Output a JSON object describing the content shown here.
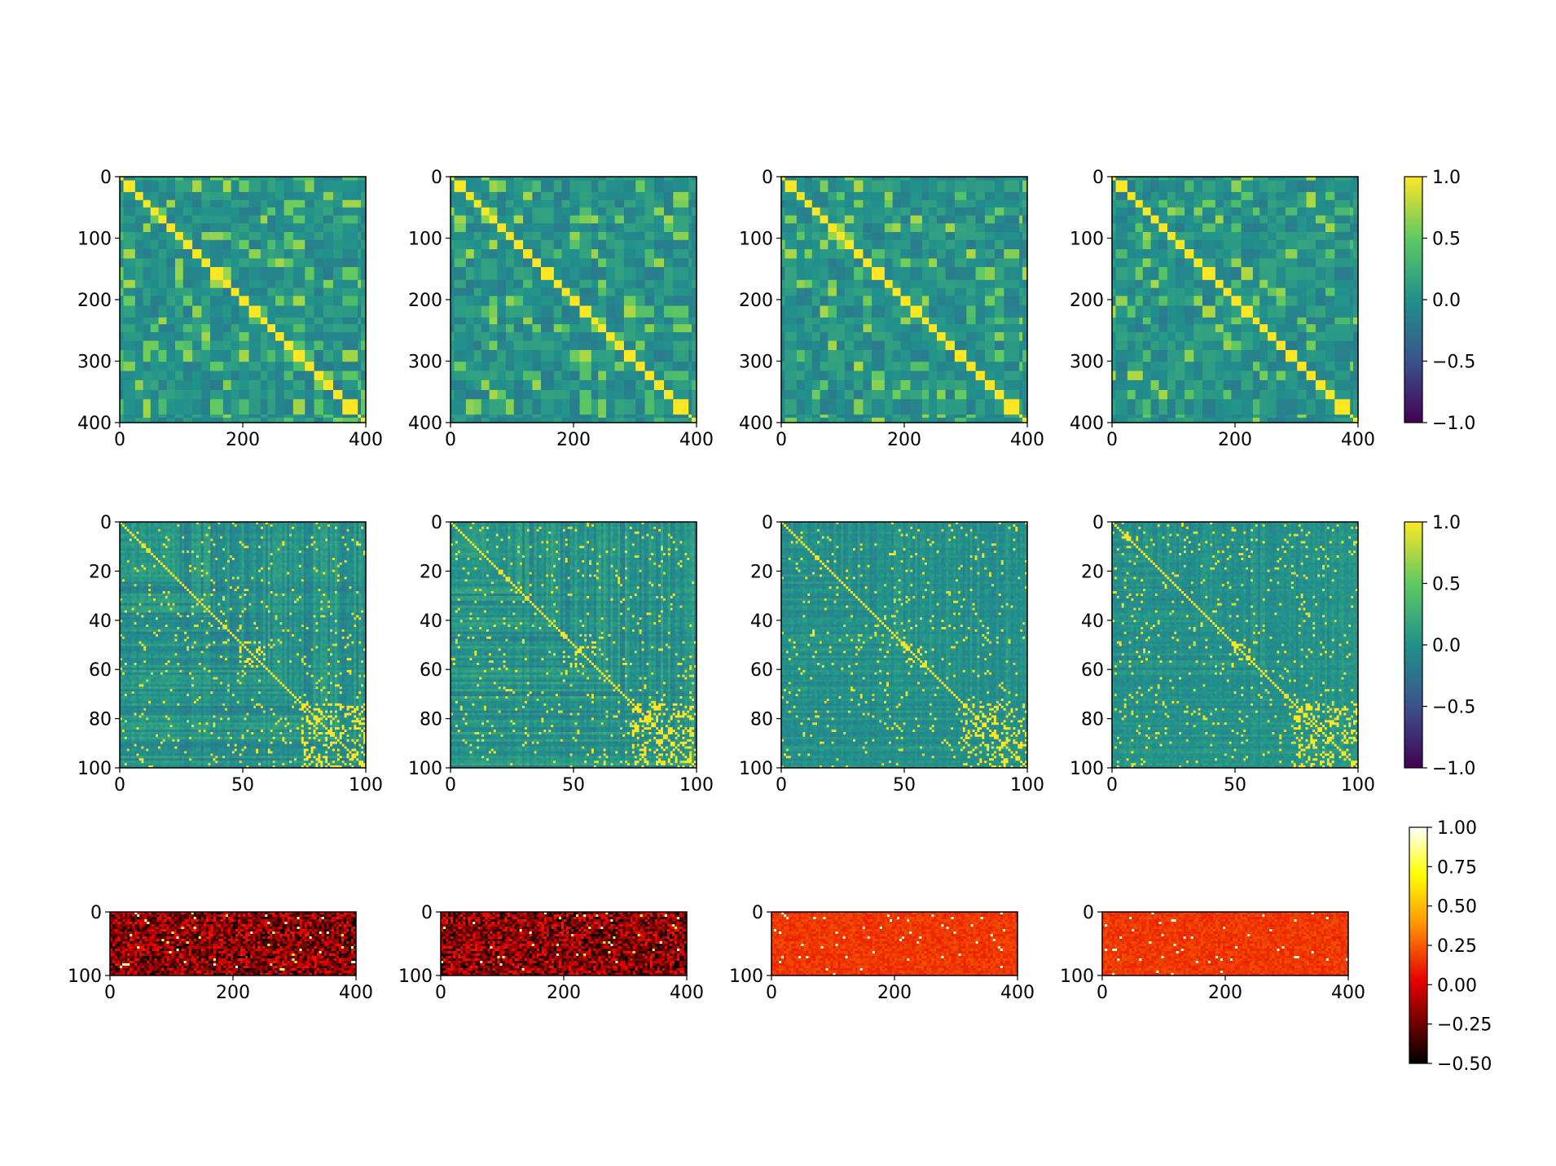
{
  "figure": {
    "panels": "12 heatmap panels in 3 rows x 4 columns with one shared colorbar per row"
  },
  "chart_data": [
    {
      "type": "heatmap",
      "row": 1,
      "col": 1,
      "variant": "blocks-a",
      "n": 400,
      "xlim": [
        0,
        400
      ],
      "ylim": [
        400,
        0
      ],
      "xticks": [
        "0",
        "200",
        "400"
      ],
      "yticks": [
        "0",
        "100",
        "200",
        "300",
        "400"
      ],
      "colormap": "viridis",
      "clim": [
        -1.0,
        1.0
      ]
    },
    {
      "type": "heatmap",
      "row": 1,
      "col": 2,
      "variant": "blocks-b",
      "n": 400,
      "xlim": [
        0,
        400
      ],
      "ylim": [
        400,
        0
      ],
      "xticks": [
        "0",
        "200",
        "400"
      ],
      "yticks": [
        "0",
        "100",
        "200",
        "300",
        "400"
      ],
      "colormap": "viridis",
      "clim": [
        -1.0,
        1.0
      ]
    },
    {
      "type": "heatmap",
      "row": 1,
      "col": 3,
      "variant": "blocks-c",
      "n": 400,
      "xlim": [
        0,
        400
      ],
      "ylim": [
        400,
        0
      ],
      "xticks": [
        "0",
        "200",
        "400"
      ],
      "yticks": [
        "0",
        "100",
        "200",
        "300",
        "400"
      ],
      "colormap": "viridis",
      "clim": [
        -1.0,
        1.0
      ]
    },
    {
      "type": "heatmap",
      "row": 1,
      "col": 4,
      "variant": "blocks-d",
      "n": 400,
      "xlim": [
        0,
        400
      ],
      "ylim": [
        400,
        0
      ],
      "xticks": [
        "0",
        "200",
        "400"
      ],
      "yticks": [
        "0",
        "100",
        "200",
        "300",
        "400"
      ],
      "colormap": "viridis",
      "clim": [
        -1.0,
        1.0
      ]
    },
    {
      "type": "heatmap",
      "row": 2,
      "col": 1,
      "variant": "sparse-a",
      "n": 103,
      "xlim": [
        0,
        100
      ],
      "ylim": [
        100,
        0
      ],
      "xticks": [
        "0",
        "50",
        "100"
      ],
      "yticks": [
        "0",
        "20",
        "40",
        "60",
        "80",
        "100"
      ],
      "colormap": "viridis",
      "clim": [
        -1.0,
        1.0
      ]
    },
    {
      "type": "heatmap",
      "row": 2,
      "col": 2,
      "variant": "sparse-b",
      "n": 103,
      "xlim": [
        0,
        100
      ],
      "ylim": [
        100,
        0
      ],
      "xticks": [
        "0",
        "50",
        "100"
      ],
      "yticks": [
        "0",
        "20",
        "40",
        "60",
        "80",
        "100"
      ],
      "colormap": "viridis",
      "clim": [
        -1.0,
        1.0
      ]
    },
    {
      "type": "heatmap",
      "row": 2,
      "col": 3,
      "variant": "sparse-c",
      "n": 103,
      "xlim": [
        0,
        100
      ],
      "ylim": [
        100,
        0
      ],
      "xticks": [
        "0",
        "50",
        "100"
      ],
      "yticks": [
        "0",
        "20",
        "40",
        "60",
        "80",
        "100"
      ],
      "colormap": "viridis",
      "clim": [
        -1.0,
        1.0
      ]
    },
    {
      "type": "heatmap",
      "row": 2,
      "col": 4,
      "variant": "sparse-d",
      "n": 103,
      "xlim": [
        0,
        100
      ],
      "ylim": [
        100,
        0
      ],
      "xticks": [
        "0",
        "50",
        "100"
      ],
      "yticks": [
        "0",
        "20",
        "40",
        "60",
        "80",
        "100"
      ],
      "colormap": "viridis",
      "clim": [
        -1.0,
        1.0
      ]
    },
    {
      "type": "heatmap",
      "row": 3,
      "col": 1,
      "variant": "hot-dark-a",
      "rows_n": 103,
      "cols_n": 400,
      "xlim": [
        0,
        400
      ],
      "ylim": [
        100,
        0
      ],
      "xticks": [
        "0",
        "200",
        "400"
      ],
      "yticks": [
        "0",
        "100"
      ],
      "colormap": "hot",
      "clim": [
        -0.5,
        1.0
      ]
    },
    {
      "type": "heatmap",
      "row": 3,
      "col": 2,
      "variant": "hot-dark-b",
      "rows_n": 103,
      "cols_n": 400,
      "xlim": [
        0,
        400
      ],
      "ylim": [
        100,
        0
      ],
      "xticks": [
        "0",
        "200",
        "400"
      ],
      "yticks": [
        "0",
        "100"
      ],
      "colormap": "hot",
      "clim": [
        -0.5,
        1.0
      ]
    },
    {
      "type": "heatmap",
      "row": 3,
      "col": 3,
      "variant": "hot-red-a",
      "rows_n": 103,
      "cols_n": 400,
      "xlim": [
        0,
        400
      ],
      "ylim": [
        100,
        0
      ],
      "xticks": [
        "0",
        "200",
        "400"
      ],
      "yticks": [
        "0",
        "100"
      ],
      "colormap": "hot",
      "clim": [
        -0.5,
        1.0
      ]
    },
    {
      "type": "heatmap",
      "row": 3,
      "col": 4,
      "variant": "hot-red-b",
      "rows_n": 103,
      "cols_n": 400,
      "xlim": [
        0,
        400
      ],
      "ylim": [
        100,
        0
      ],
      "xticks": [
        "0",
        "200",
        "400"
      ],
      "yticks": [
        "0",
        "100"
      ],
      "colormap": "hot",
      "clim": [
        -0.5,
        1.0
      ]
    }
  ],
  "colorbars": [
    {
      "row": 1,
      "colormap": "viridis",
      "range": [
        -1.0,
        1.0
      ],
      "ticks": [
        1.0,
        0.5,
        0.0,
        -0.5,
        -1.0
      ],
      "tick_labels": [
        "1.0",
        "0.5",
        "0.0",
        "−0.5",
        "−1.0"
      ]
    },
    {
      "row": 2,
      "colormap": "viridis",
      "range": [
        -1.0,
        1.0
      ],
      "ticks": [
        1.0,
        0.5,
        0.0,
        -0.5,
        -1.0
      ],
      "tick_labels": [
        "1.0",
        "0.5",
        "0.0",
        "−0.5",
        "−1.0"
      ]
    },
    {
      "row": 3,
      "colormap": "hot",
      "range": [
        -0.5,
        1.0
      ],
      "ticks": [
        1.0,
        0.75,
        0.5,
        0.25,
        0.0,
        -0.25,
        -0.5
      ],
      "tick_labels": [
        "1.00",
        "0.75",
        "0.50",
        "0.25",
        "0.00",
        "−0.25",
        "−0.50"
      ]
    }
  ],
  "colors": {
    "viridis_stops": [
      "#440154",
      "#3b528b",
      "#21918c",
      "#5ec962",
      "#fde725"
    ],
    "hot_stops": [
      "#000000",
      "#e60000",
      "#ff9a00",
      "#ffff00",
      "#ffffff"
    ]
  }
}
